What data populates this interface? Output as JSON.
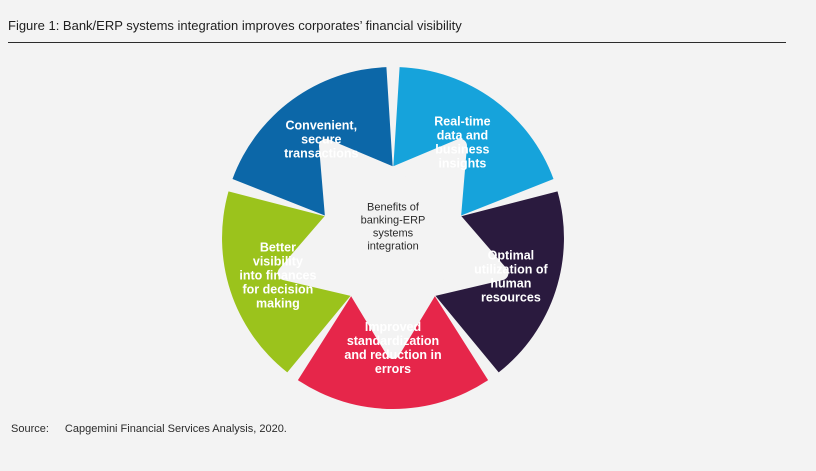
{
  "title": "Figure 1: Bank/ERP systems integration improves corporates’ financial visibility",
  "diagram": {
    "center": [
      "Benefits of",
      "banking-ERP",
      "systems",
      "integration"
    ],
    "segments": [
      {
        "name": "real-time",
        "lines": [
          "Real-time",
          "data and",
          "business",
          "insights"
        ],
        "color": "#16a3db"
      },
      {
        "name": "optimal-utilization",
        "lines": [
          "Optimal",
          "utilization of",
          "human",
          "resources"
        ],
        "color": "#2a1a3e"
      },
      {
        "name": "improved-standardization",
        "lines": [
          "Improved",
          "standardization",
          "and reduction in",
          "errors"
        ],
        "color": "#e6264a"
      },
      {
        "name": "better-visibility",
        "lines": [
          "Better",
          "visibility",
          "into finances",
          "for decision",
          "making"
        ],
        "color": "#9bc31c"
      },
      {
        "name": "convenient-secure",
        "lines": [
          "Convenient,",
          "secure",
          "transactions"
        ],
        "color": "#0c67a8"
      }
    ]
  },
  "source": {
    "label": "Source:",
    "value": "Capgemini Financial Services Analysis, 2020."
  }
}
